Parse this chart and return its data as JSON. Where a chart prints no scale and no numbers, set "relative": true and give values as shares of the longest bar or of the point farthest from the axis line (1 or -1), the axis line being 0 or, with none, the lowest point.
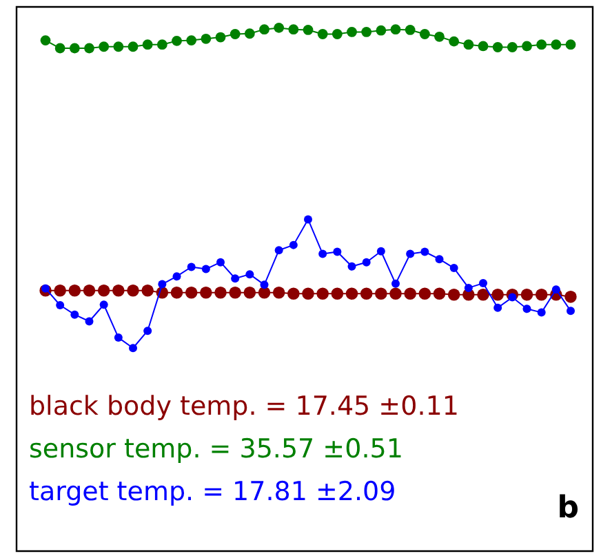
{
  "chart_data": {
    "type": "line",
    "relative": true,
    "marker": "circle",
    "line_style": "solid",
    "legend": "bottom left",
    "categories": [
      null,
      null,
      null,
      null,
      null,
      null,
      null,
      null,
      null,
      null,
      null,
      null,
      null,
      null,
      null,
      null,
      null,
      null,
      null,
      null,
      null,
      null,
      null,
      null,
      null,
      null,
      null,
      null,
      null,
      null,
      null,
      null,
      null,
      null,
      null,
      null,
      null
    ],
    "series": [
      {
        "name": "black body temp. = 17.45 ±0.11",
        "color": "#8b0000",
        "values": [
          0.498,
          0.498,
          0.498,
          0.498,
          0.498,
          0.498,
          0.498,
          0.498,
          0.494,
          0.494,
          0.494,
          0.494,
          0.494,
          0.494,
          0.494,
          0.494,
          0.494,
          0.492,
          0.492,
          0.492,
          0.492,
          0.492,
          0.492,
          0.492,
          0.492,
          0.492,
          0.492,
          0.492,
          0.49,
          0.49,
          0.49,
          0.49,
          0.49,
          0.49,
          0.49,
          0.49,
          0.486
        ]
      },
      {
        "name": "sensor temp. = 35.57 ±0.51",
        "color": "#008000",
        "values": [
          0.976,
          0.961,
          0.961,
          0.961,
          0.964,
          0.964,
          0.964,
          0.968,
          0.968,
          0.975,
          0.976,
          0.979,
          0.982,
          0.988,
          0.989,
          0.997,
          1.0,
          0.997,
          0.996,
          0.988,
          0.988,
          0.992,
          0.992,
          0.995,
          0.997,
          0.996,
          0.988,
          0.983,
          0.974,
          0.968,
          0.965,
          0.963,
          0.963,
          0.965,
          0.968,
          0.968,
          0.968
        ]
      },
      {
        "name": "target temp. = 17.81 ±2.09",
        "color": "#0000ff",
        "values": [
          0.502,
          0.47,
          0.452,
          0.439,
          0.471,
          0.408,
          0.388,
          0.421,
          0.51,
          0.525,
          0.543,
          0.539,
          0.552,
          0.521,
          0.529,
          0.509,
          0.575,
          0.585,
          0.634,
          0.568,
          0.572,
          0.544,
          0.552,
          0.573,
          0.511,
          0.568,
          0.572,
          0.558,
          0.541,
          0.503,
          0.512,
          0.465,
          0.485,
          0.463,
          0.456,
          0.5,
          0.459
        ]
      }
    ],
    "annotations": [
      "b"
    ]
  }
}
